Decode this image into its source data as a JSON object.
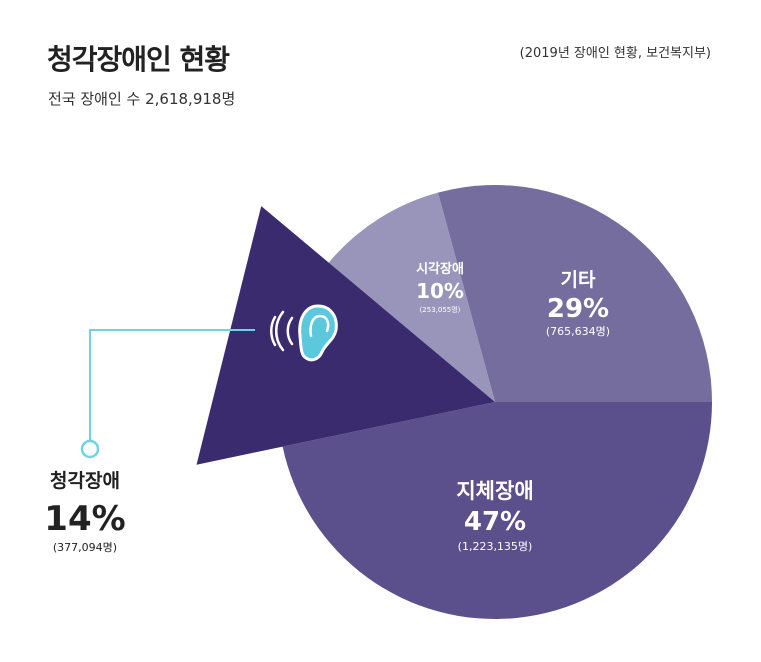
{
  "header": {
    "title": "청각장애인 현황",
    "subtitle": "전국 장애인 수 2,618,918명",
    "source": "(2019년 장애인 현황, 보건복지부)"
  },
  "colors": {
    "hearing": "#3a2a6e",
    "physical": "#5b4f8c",
    "other": "#766d9f",
    "visual": "#9995ba",
    "callout": "#6fd3e6",
    "ear": "#5bc8dc"
  },
  "chart_data": {
    "type": "pie",
    "title": "청각장애인 현황",
    "slices": [
      {
        "key": "hearing",
        "label": "청각장애",
        "percent_label": "14%",
        "count_label": "(377,094명)",
        "value": 377094,
        "exploded": true,
        "icon": "ear-icon"
      },
      {
        "key": "physical",
        "label": "지체장애",
        "percent_label": "47%",
        "count_label": "(1,223,135명)",
        "value": 1223135
      },
      {
        "key": "other",
        "label": "기타",
        "percent_label": "29%",
        "count_label": "(765,634명)",
        "value": 765634
      },
      {
        "key": "visual",
        "label": "시각장애",
        "percent_label": "10%",
        "count_label": "(253,055명)",
        "value": 253055
      }
    ]
  }
}
